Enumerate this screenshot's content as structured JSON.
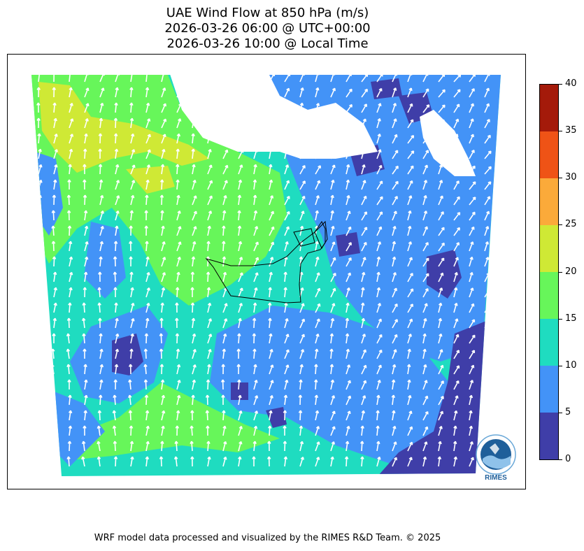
{
  "title": {
    "line1": "UAE Wind Flow at 850 hPa (m/s)",
    "line2": "2026-03-26 06:00 @ UTC+00:00",
    "line3": "2026-03-26 10:00 @ Local Time"
  },
  "colorbar": {
    "ticks": [
      "0",
      "5",
      "10",
      "15",
      "20",
      "25",
      "30",
      "35",
      "40"
    ],
    "bins": [
      {
        "from": 0,
        "to": 5,
        "color": "#3f3ea8"
      },
      {
        "from": 5,
        "to": 10,
        "color": "#4393f7"
      },
      {
        "from": 10,
        "to": 15,
        "color": "#1fdcc0"
      },
      {
        "from": 15,
        "to": 20,
        "color": "#67f65a"
      },
      {
        "from": 20,
        "to": 25,
        "color": "#cfe935"
      },
      {
        "from": 25,
        "to": 30,
        "color": "#fbaa3a"
      },
      {
        "from": 30,
        "to": 35,
        "color": "#ef5316"
      },
      {
        "from": 35,
        "to": 40,
        "color": "#a41a0a"
      }
    ]
  },
  "logo": {
    "text": "RIMES",
    "icon": "rimes-logo-icon"
  },
  "footer": "WRF model data processed and visualized by the RIMES R&D Team. © 2025"
}
